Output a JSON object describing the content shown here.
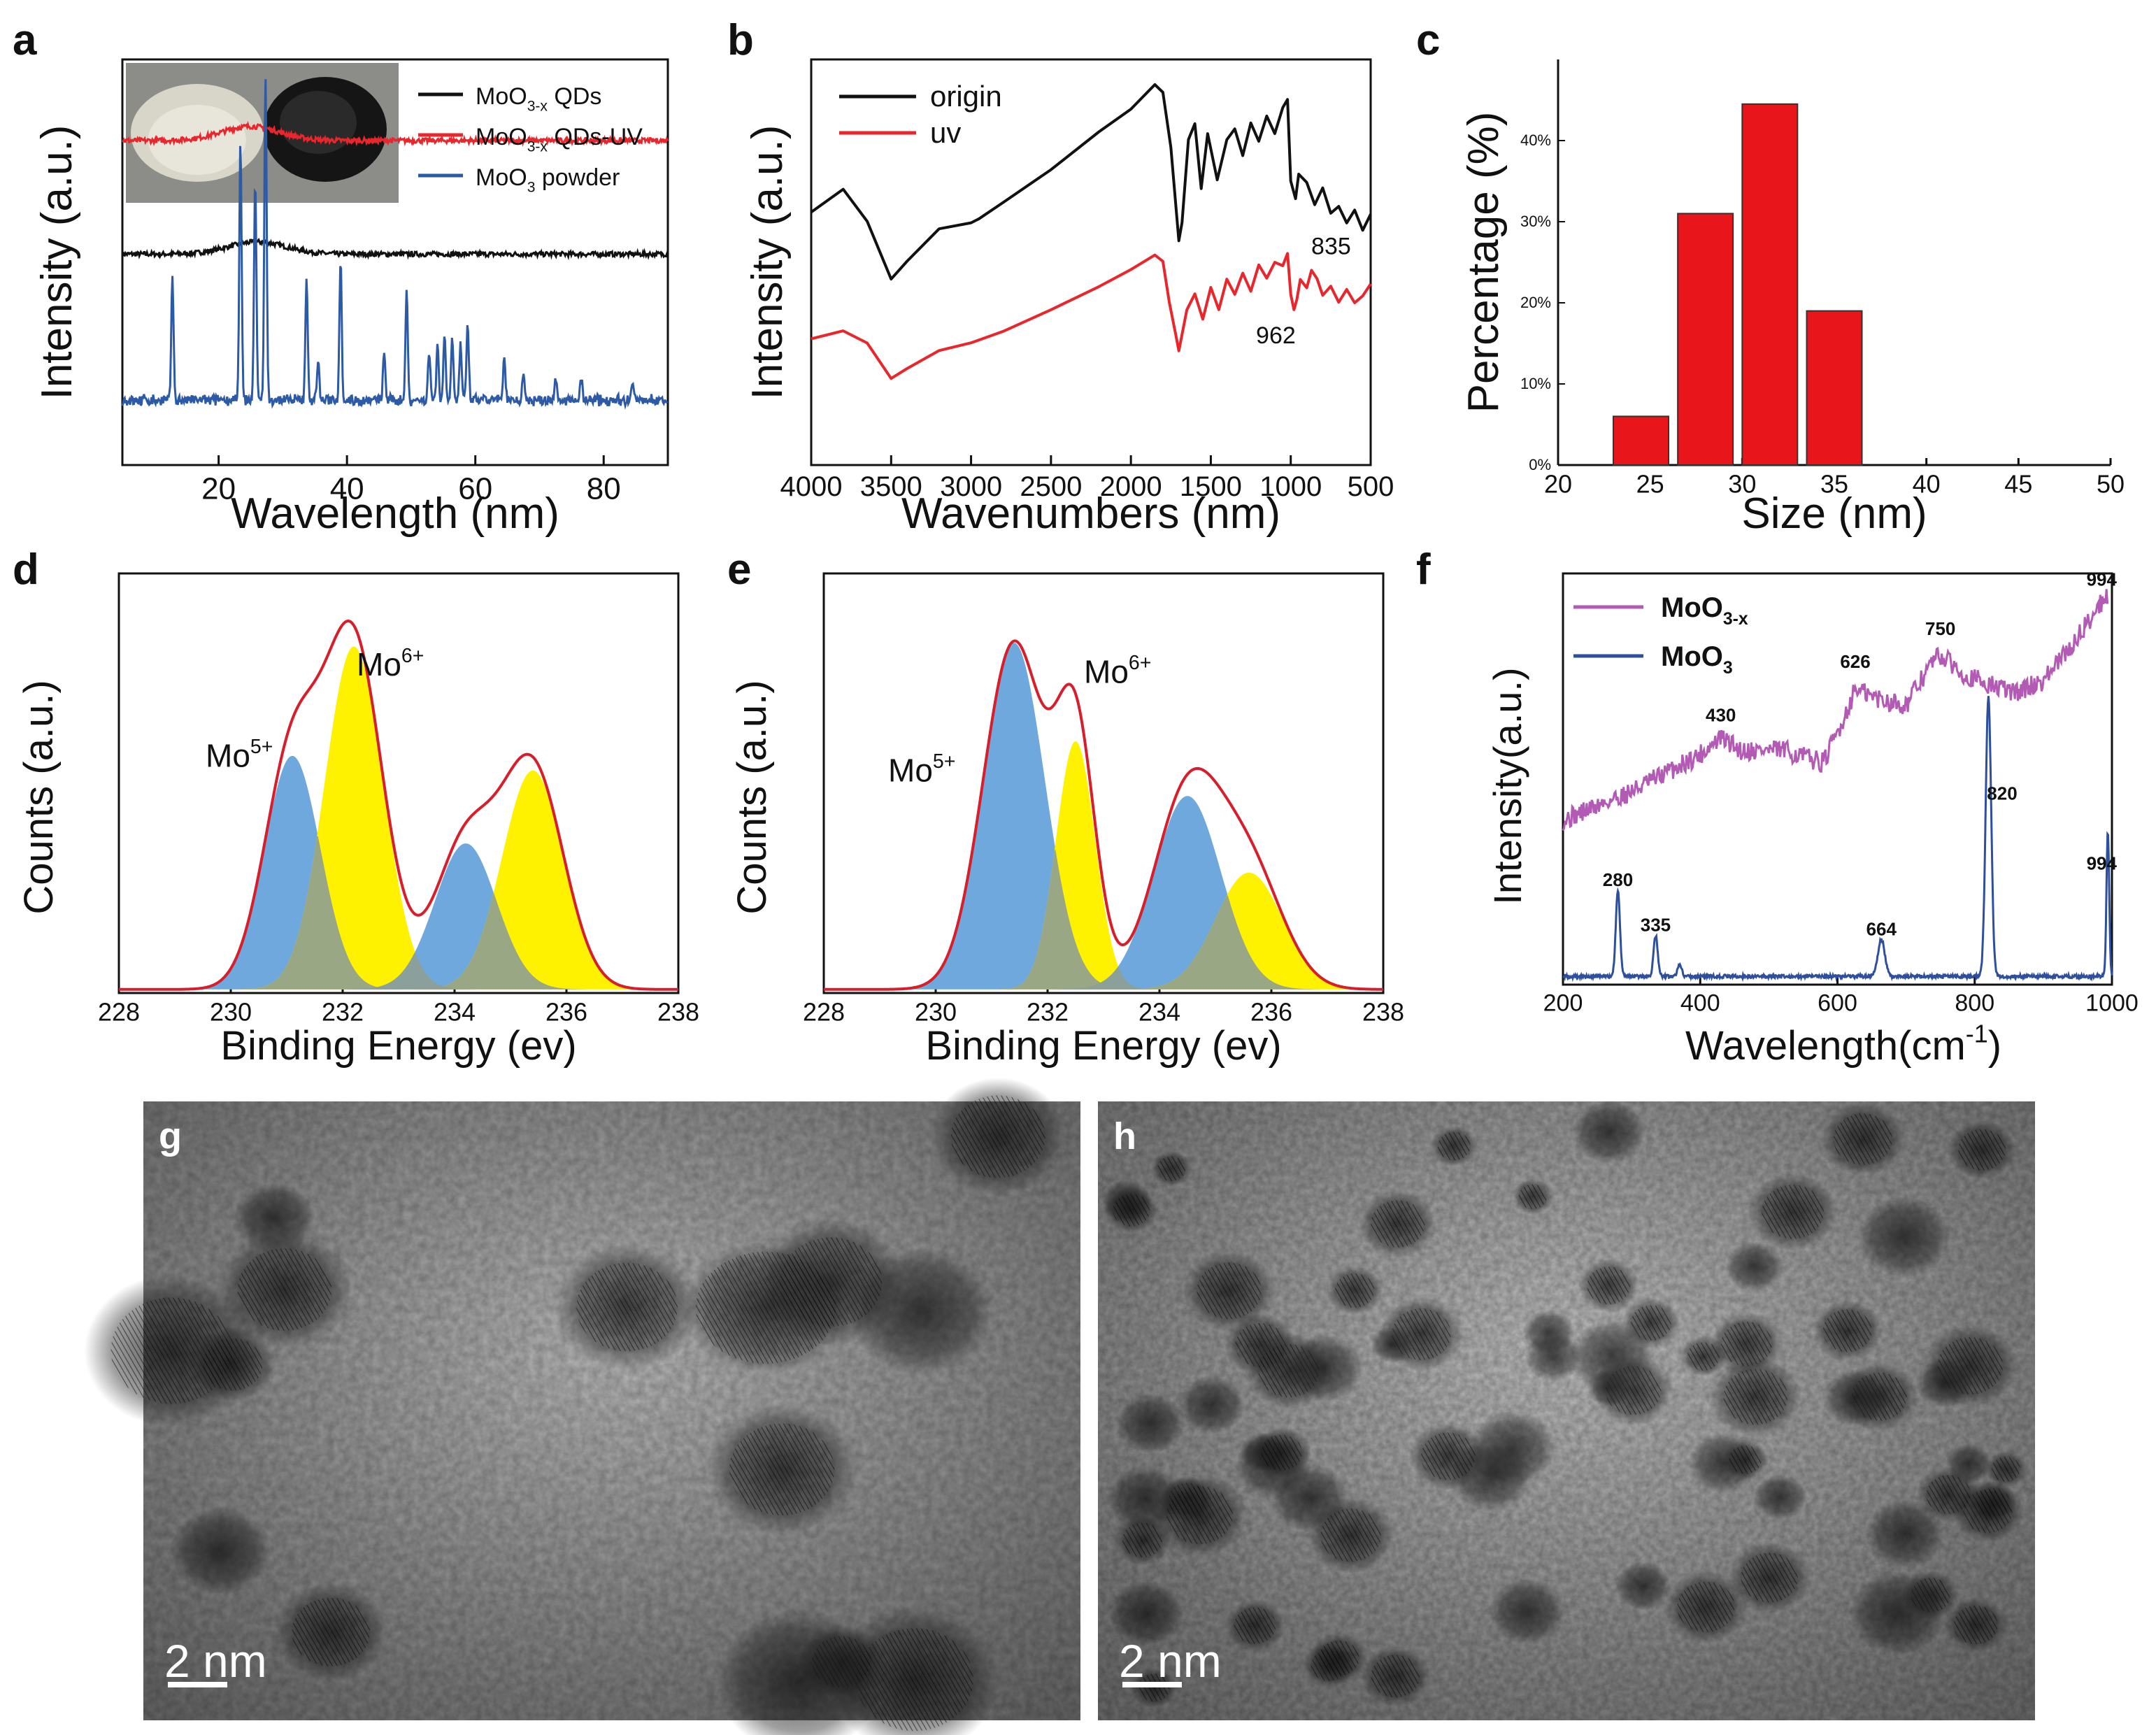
{
  "panel_letters": [
    "a",
    "b",
    "c",
    "d",
    "e",
    "f",
    "g",
    "h"
  ],
  "colors": {
    "black": "#111111",
    "red": "#e8262b",
    "blue": "#2c5aa6",
    "bar_red": "#e8161b",
    "peak_blue": "#6fa8dc",
    "peak_yellow": "#fff200",
    "overlap": "#8e9e92",
    "purple": "#b35ab5",
    "navy": "#2d4f9e"
  },
  "chart_data": [
    {
      "panel": "a",
      "type": "line",
      "xlabel": "Wavelength (nm)",
      "ylabel": "Intensity (a.u.)",
      "xlim": [
        5,
        90
      ],
      "xticks": [
        "20",
        "40",
        "60",
        "80"
      ],
      "inset_photos": [
        "white MoO3 powder",
        "black MoO3-x QDs powder"
      ],
      "series": [
        {
          "name": "MoO3-x QDs",
          "base": "MoO",
          "sub": "3-x",
          "rest": " QDs",
          "color": "#111111",
          "baseline": 0.52,
          "broad_hump": {
            "center": 26,
            "height": 0.03
          }
        },
        {
          "name": "MoO3-x QDs-UV",
          "base": "MoO",
          "sub": "3-x",
          "rest": " QDs-UV",
          "color": "#e8262b",
          "baseline": 0.8,
          "broad_hump": {
            "center": 25,
            "height": 0.035
          }
        },
        {
          "name": "MoO3 powder",
          "base": "MoO",
          "sub": "3",
          "rest": " powder",
          "color": "#2c5aa6",
          "baseline": 0.16,
          "peaks": [
            [
              12.8,
              0.3
            ],
            [
              23.4,
              0.63
            ],
            [
              25.7,
              0.55
            ],
            [
              27.3,
              0.8
            ],
            [
              33.7,
              0.3
            ],
            [
              35.5,
              0.1
            ],
            [
              39.0,
              0.35
            ],
            [
              45.8,
              0.12
            ],
            [
              49.3,
              0.27
            ],
            [
              52.8,
              0.12
            ],
            [
              54.1,
              0.14
            ],
            [
              55.2,
              0.16
            ],
            [
              56.4,
              0.15
            ],
            [
              57.7,
              0.14
            ],
            [
              58.8,
              0.18
            ],
            [
              64.5,
              0.1
            ],
            [
              67.5,
              0.07
            ],
            [
              72.5,
              0.06
            ],
            [
              76.5,
              0.05
            ],
            [
              84.5,
              0.05
            ]
          ]
        }
      ]
    },
    {
      "panel": "b",
      "type": "line",
      "xlabel": "Wavenumbers (nm)",
      "ylabel": "Intensity (a.u.)",
      "xlim": [
        4000,
        500
      ],
      "xticks": [
        "4000",
        "3500",
        "3000",
        "2500",
        "2000",
        "1500",
        "1000",
        "500"
      ],
      "annotations": [
        "835",
        "962"
      ],
      "series": [
        {
          "name": "origin",
          "color": "#111111",
          "points": [
            [
              4000,
              0.62
            ],
            [
              3800,
              0.68
            ],
            [
              3650,
              0.6
            ],
            [
              3500,
              0.46
            ],
            [
              3400,
              0.5
            ],
            [
              3200,
              0.58
            ],
            [
              3000,
              0.6
            ],
            [
              2950,
              0.61
            ],
            [
              2800,
              0.65
            ],
            [
              2500,
              0.73
            ],
            [
              2200,
              0.82
            ],
            [
              2000,
              0.88
            ],
            [
              1850,
              0.94
            ],
            [
              1800,
              0.92
            ],
            [
              1750,
              0.78
            ],
            [
              1700,
              0.55
            ],
            [
              1680,
              0.6
            ],
            [
              1640,
              0.8
            ],
            [
              1600,
              0.84
            ],
            [
              1560,
              0.68
            ],
            [
              1520,
              0.82
            ],
            [
              1460,
              0.7
            ],
            [
              1400,
              0.8
            ],
            [
              1350,
              0.83
            ],
            [
              1300,
              0.76
            ],
            [
              1250,
              0.84
            ],
            [
              1200,
              0.8
            ],
            [
              1150,
              0.86
            ],
            [
              1100,
              0.82
            ],
            [
              1050,
              0.88
            ],
            [
              1020,
              0.9
            ],
            [
              1000,
              0.7
            ],
            [
              970,
              0.66
            ],
            [
              950,
              0.72
            ],
            [
              900,
              0.7
            ],
            [
              850,
              0.64
            ],
            [
              800,
              0.68
            ],
            [
              750,
              0.62
            ],
            [
              700,
              0.64
            ],
            [
              650,
              0.6
            ],
            [
              600,
              0.63
            ],
            [
              550,
              0.58
            ],
            [
              500,
              0.62
            ]
          ]
        },
        {
          "name": "uv",
          "color": "#e8262b",
          "points": [
            [
              4000,
              0.31
            ],
            [
              3800,
              0.33
            ],
            [
              3650,
              0.3
            ],
            [
              3500,
              0.21
            ],
            [
              3400,
              0.24
            ],
            [
              3200,
              0.28
            ],
            [
              3000,
              0.3
            ],
            [
              2800,
              0.33
            ],
            [
              2500,
              0.38
            ],
            [
              2200,
              0.44
            ],
            [
              2000,
              0.48
            ],
            [
              1850,
              0.52
            ],
            [
              1800,
              0.5
            ],
            [
              1760,
              0.4
            ],
            [
              1720,
              0.32
            ],
            [
              1700,
              0.28
            ],
            [
              1650,
              0.38
            ],
            [
              1600,
              0.42
            ],
            [
              1550,
              0.36
            ],
            [
              1500,
              0.44
            ],
            [
              1450,
              0.38
            ],
            [
              1400,
              0.46
            ],
            [
              1350,
              0.42
            ],
            [
              1300,
              0.47
            ],
            [
              1250,
              0.43
            ],
            [
              1200,
              0.49
            ],
            [
              1150,
              0.46
            ],
            [
              1100,
              0.5
            ],
            [
              1050,
              0.49
            ],
            [
              1020,
              0.52
            ],
            [
              1000,
              0.42
            ],
            [
              980,
              0.38
            ],
            [
              962,
              0.41
            ],
            [
              940,
              0.46
            ],
            [
              900,
              0.44
            ],
            [
              870,
              0.48
            ],
            [
              835,
              0.46
            ],
            [
              800,
              0.42
            ],
            [
              750,
              0.44
            ],
            [
              700,
              0.4
            ],
            [
              650,
              0.43
            ],
            [
              600,
              0.4
            ],
            [
              550,
              0.42
            ],
            [
              500,
              0.45
            ]
          ]
        }
      ]
    },
    {
      "panel": "c",
      "type": "bar",
      "title": "",
      "xlabel": "Size (nm)",
      "ylabel": "Percentage (%)",
      "xlim": [
        20,
        50
      ],
      "ylim": [
        0,
        0.5
      ],
      "xticks": [
        "20",
        "25",
        "30",
        "35",
        "40",
        "45",
        "50"
      ],
      "yticks": [
        "0%",
        "10%",
        "20%",
        "30%",
        "40%"
      ],
      "bars": [
        {
          "x0": 23,
          "x1": 26,
          "value": 0.06
        },
        {
          "x0": 26.5,
          "x1": 29.5,
          "value": 0.31
        },
        {
          "x0": 30,
          "x1": 33,
          "value": 0.445
        },
        {
          "x0": 33.5,
          "x1": 36.5,
          "value": 0.19
        }
      ]
    },
    {
      "panel": "d",
      "type": "area",
      "xlabel": "Binding Energy (ev)",
      "ylabel": "Counts (a.u.)",
      "xlim": [
        228,
        238
      ],
      "xticks": [
        "228",
        "230",
        "232",
        "234",
        "236",
        "238"
      ],
      "labels": [
        {
          "base": "Mo",
          "sup": "5+",
          "x": 230.3,
          "y": 0.62
        },
        {
          "base": "Mo",
          "sup": "6+",
          "x": 233.0,
          "y": 0.87
        }
      ],
      "peaks": [
        {
          "center": 231.1,
          "height": 0.64,
          "sigma": 0.5,
          "color": "#6fa8dc"
        },
        {
          "center": 232.2,
          "height": 0.94,
          "sigma": 0.52,
          "color": "#fff200"
        },
        {
          "center": 234.2,
          "height": 0.4,
          "sigma": 0.55,
          "color": "#6fa8dc"
        },
        {
          "center": 235.4,
          "height": 0.6,
          "sigma": 0.55,
          "color": "#fff200"
        }
      ]
    },
    {
      "panel": "e",
      "type": "area",
      "xlabel": "Binding Energy (ev)",
      "ylabel": "Counts (a.u.)",
      "xlim": [
        228,
        238
      ],
      "xticks": [
        "228",
        "230",
        "232",
        "234",
        "236",
        "238"
      ],
      "labels": [
        {
          "base": "Mo",
          "sup": "5+",
          "x": 229.9,
          "y": 0.58
        },
        {
          "base": "Mo",
          "sup": "6+",
          "x": 233.4,
          "y": 0.85
        }
      ],
      "peaks": [
        {
          "center": 231.4,
          "height": 0.95,
          "sigma": 0.55,
          "color": "#6fa8dc"
        },
        {
          "center": 232.5,
          "height": 0.68,
          "sigma": 0.35,
          "color": "#fff200"
        },
        {
          "center": 234.5,
          "height": 0.53,
          "sigma": 0.6,
          "color": "#6fa8dc"
        },
        {
          "center": 235.6,
          "height": 0.32,
          "sigma": 0.6,
          "color": "#fff200"
        }
      ]
    },
    {
      "panel": "f",
      "type": "line",
      "xlabel": "Wavelength(cm",
      "xlabel_sup": "-1",
      "xlabel_tail": ")",
      "ylabel": "Intensity(a.u.)",
      "xlim": [
        200,
        1000
      ],
      "xticks": [
        "200",
        "400",
        "600",
        "800",
        "1000"
      ],
      "series": [
        {
          "name": "MoO3-x",
          "base": "MoO",
          "sub": "3-x",
          "color": "#b35ab5",
          "points": [
            [
              200,
              0.4
            ],
            [
              300,
              0.47
            ],
            [
              400,
              0.56
            ],
            [
              430,
              0.6
            ],
            [
              460,
              0.57
            ],
            [
              520,
              0.57
            ],
            [
              580,
              0.54
            ],
            [
              610,
              0.65
            ],
            [
              626,
              0.72
            ],
            [
              650,
              0.7
            ],
            [
              700,
              0.68
            ],
            [
              740,
              0.79
            ],
            [
              750,
              0.8
            ],
            [
              790,
              0.75
            ],
            [
              820,
              0.73
            ],
            [
              860,
              0.71
            ],
            [
              900,
              0.74
            ],
            [
              940,
              0.82
            ],
            [
              980,
              0.92
            ],
            [
              994,
              0.95
            ]
          ]
        },
        {
          "name": "MoO3",
          "base": "MoO",
          "sub": "3",
          "color": "#2d4f9e",
          "baseline": 0.02,
          "peaks": [
            [
              280,
              0.21,
              3
            ],
            [
              335,
              0.1,
              3
            ],
            [
              370,
              0.03,
              3
            ],
            [
              664,
              0.09,
              5
            ],
            [
              820,
              0.68,
              4
            ],
            [
              994,
              0.35,
              2
            ]
          ]
        }
      ],
      "annotations": [
        "430",
        "626",
        "750",
        "994",
        "280",
        "335",
        "664",
        "820",
        "994"
      ]
    }
  ],
  "tem_images": [
    {
      "panel": "g",
      "scale": "2 nm"
    },
    {
      "panel": "h",
      "scale": "2 nm"
    }
  ]
}
